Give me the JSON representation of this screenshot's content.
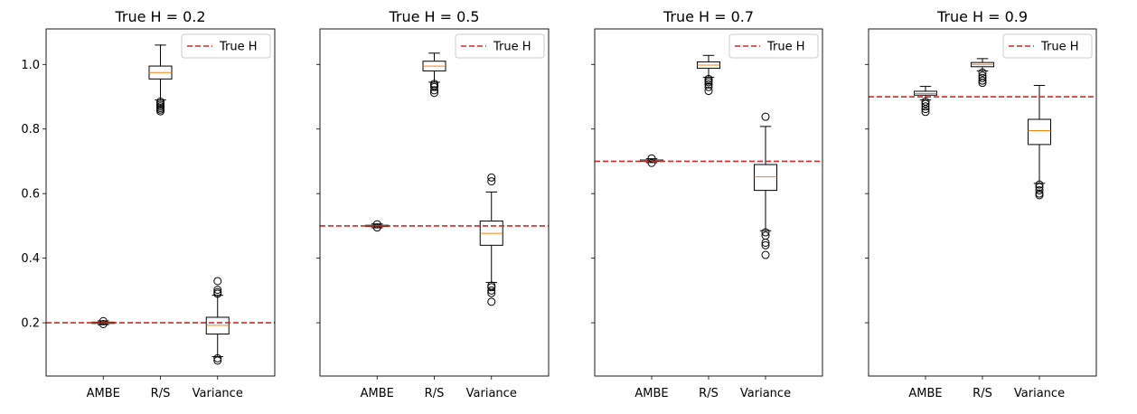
{
  "colors": {
    "true_h_line": "#d62728",
    "median": "#ff7f0e",
    "box": "#000000"
  },
  "chart_data": [
    {
      "type": "box",
      "title": "True H = 0.2",
      "categories": [
        "AMBE",
        "R/S",
        "Variance"
      ],
      "true_h": 0.2,
      "legend": "True H",
      "legend_position": "top-right",
      "ylim": [
        0.035,
        1.11
      ],
      "yticks": [
        0.2,
        0.4,
        0.6,
        0.8,
        1.0
      ],
      "ytick_labels": [
        "0.2",
        "0.4",
        "0.6",
        "0.8",
        "1.0"
      ],
      "show_ytick_labels": true,
      "boxes": [
        {
          "q1": 0.198,
          "median": 0.2,
          "q3": 0.202,
          "whislo": 0.194,
          "whishi": 0.206,
          "fliers": [
            0.196,
            0.205
          ]
        },
        {
          "q1": 0.955,
          "median": 0.975,
          "q3": 0.995,
          "whislo": 0.89,
          "whishi": 1.06,
          "fliers": [
            0.885,
            0.88,
            0.875,
            0.87,
            0.865,
            0.86,
            0.855
          ]
        },
        {
          "q1": 0.165,
          "median": 0.192,
          "q3": 0.217,
          "whislo": 0.095,
          "whishi": 0.285,
          "fliers": [
            0.09,
            0.083,
            0.29,
            0.295,
            0.302,
            0.329
          ]
        }
      ]
    },
    {
      "type": "box",
      "title": "True H = 0.5",
      "categories": [
        "AMBE",
        "R/S",
        "Variance"
      ],
      "true_h": 0.5,
      "legend": "True H",
      "legend_position": "top-right",
      "ylim": [
        0.035,
        1.11
      ],
      "yticks": [
        0.2,
        0.4,
        0.6,
        0.8,
        1.0
      ],
      "ytick_labels": [
        "0.2",
        "0.4",
        "0.6",
        "0.8",
        "1.0"
      ],
      "show_ytick_labels": false,
      "boxes": [
        {
          "q1": 0.498,
          "median": 0.5,
          "q3": 0.502,
          "whislo": 0.494,
          "whishi": 0.506,
          "fliers": [
            0.495,
            0.505
          ]
        },
        {
          "q1": 0.98,
          "median": 0.995,
          "q3": 1.01,
          "whislo": 0.945,
          "whishi": 1.035,
          "fliers": [
            0.94,
            0.935,
            0.93,
            0.92,
            0.912
          ]
        },
        {
          "q1": 0.44,
          "median": 0.477,
          "q3": 0.515,
          "whislo": 0.325,
          "whishi": 0.605,
          "fliers": [
            0.315,
            0.31,
            0.3,
            0.292,
            0.265,
            0.638,
            0.65
          ]
        }
      ]
    },
    {
      "type": "box",
      "title": "True H = 0.7",
      "categories": [
        "AMBE",
        "R/S",
        "Variance"
      ],
      "true_h": 0.7,
      "legend": "True H",
      "legend_position": "top-right",
      "ylim": [
        0.035,
        1.11
      ],
      "yticks": [
        0.2,
        0.4,
        0.6,
        0.8,
        1.0
      ],
      "ytick_labels": [
        "0.2",
        "0.4",
        "0.6",
        "0.8",
        "1.0"
      ],
      "show_ytick_labels": false,
      "boxes": [
        {
          "q1": 0.7,
          "median": 0.702,
          "q3": 0.704,
          "whislo": 0.696,
          "whishi": 0.708,
          "fliers": [
            0.695,
            0.709
          ]
        },
        {
          "q1": 0.988,
          "median": 0.998,
          "q3": 1.008,
          "whislo": 0.96,
          "whishi": 1.028,
          "fliers": [
            0.955,
            0.95,
            0.945,
            0.938,
            0.93,
            0.918
          ]
        },
        {
          "q1": 0.61,
          "median": 0.652,
          "q3": 0.69,
          "whislo": 0.485,
          "whishi": 0.808,
          "fliers": [
            0.48,
            0.47,
            0.448,
            0.44,
            0.41,
            0.838
          ]
        }
      ]
    },
    {
      "type": "box",
      "title": "True H = 0.9",
      "categories": [
        "AMBE",
        "R/S",
        "Variance"
      ],
      "true_h": 0.9,
      "legend": "True H",
      "legend_position": "top-right",
      "ylim": [
        0.035,
        1.11
      ],
      "yticks": [
        0.2,
        0.4,
        0.6,
        0.8,
        1.0
      ],
      "ytick_labels": [
        "0.2",
        "0.4",
        "0.6",
        "0.8",
        "1.0"
      ],
      "show_ytick_labels": false,
      "boxes": [
        {
          "q1": 0.905,
          "median": 0.91,
          "q3": 0.917,
          "whislo": 0.89,
          "whishi": 0.932,
          "fliers": [
            0.885,
            0.878,
            0.87,
            0.862,
            0.853
          ]
        },
        {
          "q1": 0.993,
          "median": 1.0,
          "q3": 1.006,
          "whislo": 0.98,
          "whishi": 1.018,
          "fliers": [
            0.975,
            0.965,
            0.958,
            0.95,
            0.943
          ]
        },
        {
          "q1": 0.752,
          "median": 0.795,
          "q3": 0.83,
          "whislo": 0.632,
          "whishi": 0.935,
          "fliers": [
            0.628,
            0.62,
            0.61,
            0.6,
            0.595
          ]
        }
      ]
    }
  ]
}
